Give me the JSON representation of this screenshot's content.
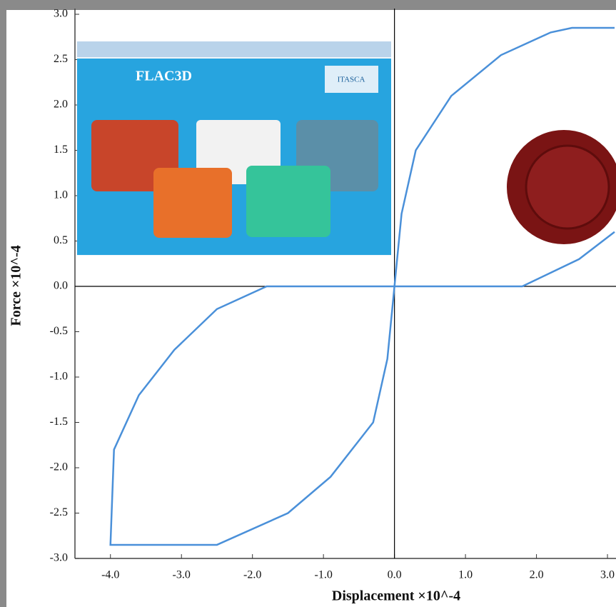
{
  "chart_data": {
    "type": "line",
    "x_label": "Displacement ×10^-4",
    "y_label": "Force ×10^-4",
    "xlim": [
      -4.5,
      3.1
    ],
    "ylim": [
      -3.0,
      3.0
    ],
    "xticks": [
      {
        "value": -4,
        "label": "-4.0"
      },
      {
        "value": -3,
        "label": "-3.0"
      },
      {
        "value": -2,
        "label": "-2.0"
      },
      {
        "value": -1,
        "label": "-1.0"
      },
      {
        "value": 0,
        "label": "0.0"
      },
      {
        "value": 1,
        "label": "1.0"
      },
      {
        "value": 2,
        "label": "2.0"
      },
      {
        "value": 3,
        "label": "3.0"
      }
    ],
    "yticks": [
      {
        "value": -3,
        "label": "-3.0"
      },
      -2.5,
      {
        "value": -2,
        "label": "-2.0"
      },
      -1.5,
      {
        "value": -1,
        "label": "-1.0"
      },
      -0.5,
      {
        "value": 0,
        "label": "0.0"
      },
      0.5,
      {
        "value": 1,
        "label": "1.0"
      },
      1.5,
      {
        "value": 2,
        "label": "2.0"
      },
      2.5,
      {
        "value": 3,
        "label": "3.0"
      }
    ],
    "series": [
      {
        "color": "#4a90d9",
        "x": [
          3.1,
          2.6,
          1.8,
          -1.8,
          -2.5,
          -3.1,
          -3.6,
          -3.95,
          -4.0,
          -2.5,
          -1.5,
          -0.9,
          -0.3,
          -0.1,
          0.0,
          0.1,
          0.3,
          0.8,
          1.5,
          2.2,
          2.5,
          3.1
        ],
        "values": [
          0.6,
          0.3,
          0.0,
          0.0,
          -0.25,
          -0.7,
          -1.2,
          -1.8,
          -2.85,
          -2.85,
          -2.5,
          -2.1,
          -1.5,
          -0.8,
          0.0,
          0.8,
          1.5,
          2.1,
          2.55,
          2.8,
          2.85,
          2.85
        ]
      }
    ],
    "overlay": {
      "title": "FLAC3D",
      "logo": "ITASCA"
    }
  }
}
